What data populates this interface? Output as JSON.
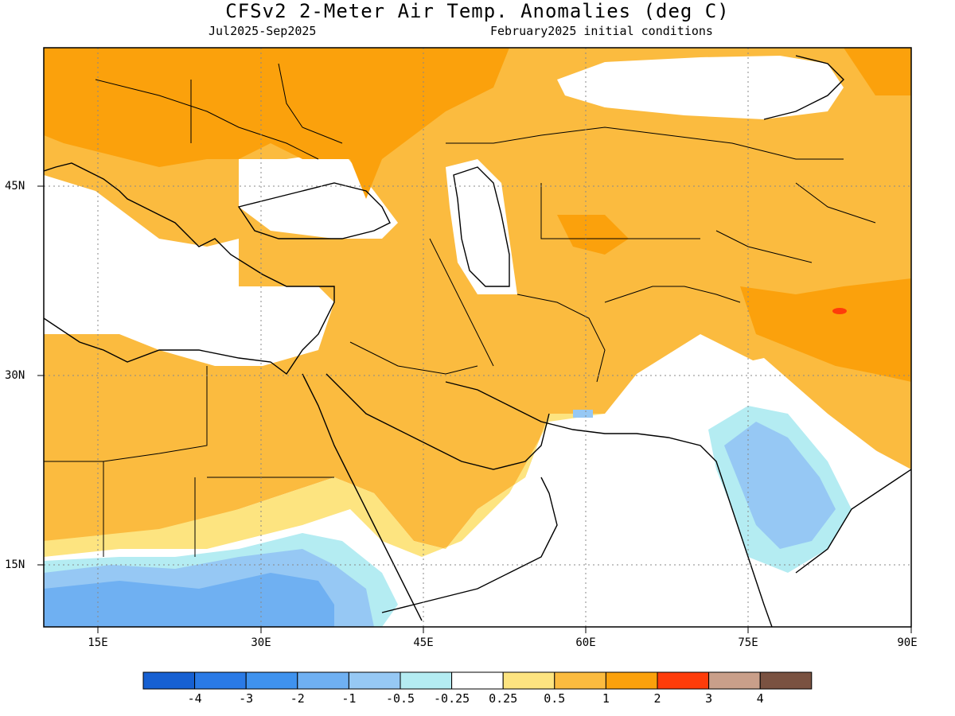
{
  "header": {
    "title": "CFSv2 2-Meter Air Temp. Anomalies (deg C)",
    "period": "Jul2025-Sep2025",
    "init": "February2025 initial conditions"
  },
  "axes": {
    "lat_labels": [
      "45N",
      "30N",
      "15N"
    ],
    "lon_labels": [
      "15E",
      "30E",
      "45E",
      "60E",
      "75E",
      "90E"
    ]
  },
  "legend": {
    "labels": [
      "-4",
      "-3",
      "-2",
      "-1",
      "-0.5",
      "-0.25",
      "0.25",
      "0.5",
      "1",
      "2",
      "3",
      "4"
    ],
    "colors": [
      "#1660d2",
      "#2a7ae6",
      "#3f92ee",
      "#6fb0f2",
      "#96c8f4",
      "#b4ecf2",
      "#ffffff",
      "#fde480",
      "#fbbb3f",
      "#fba10c",
      "#fe3c0a",
      "#c99f8a",
      "#7a5241"
    ]
  }
}
